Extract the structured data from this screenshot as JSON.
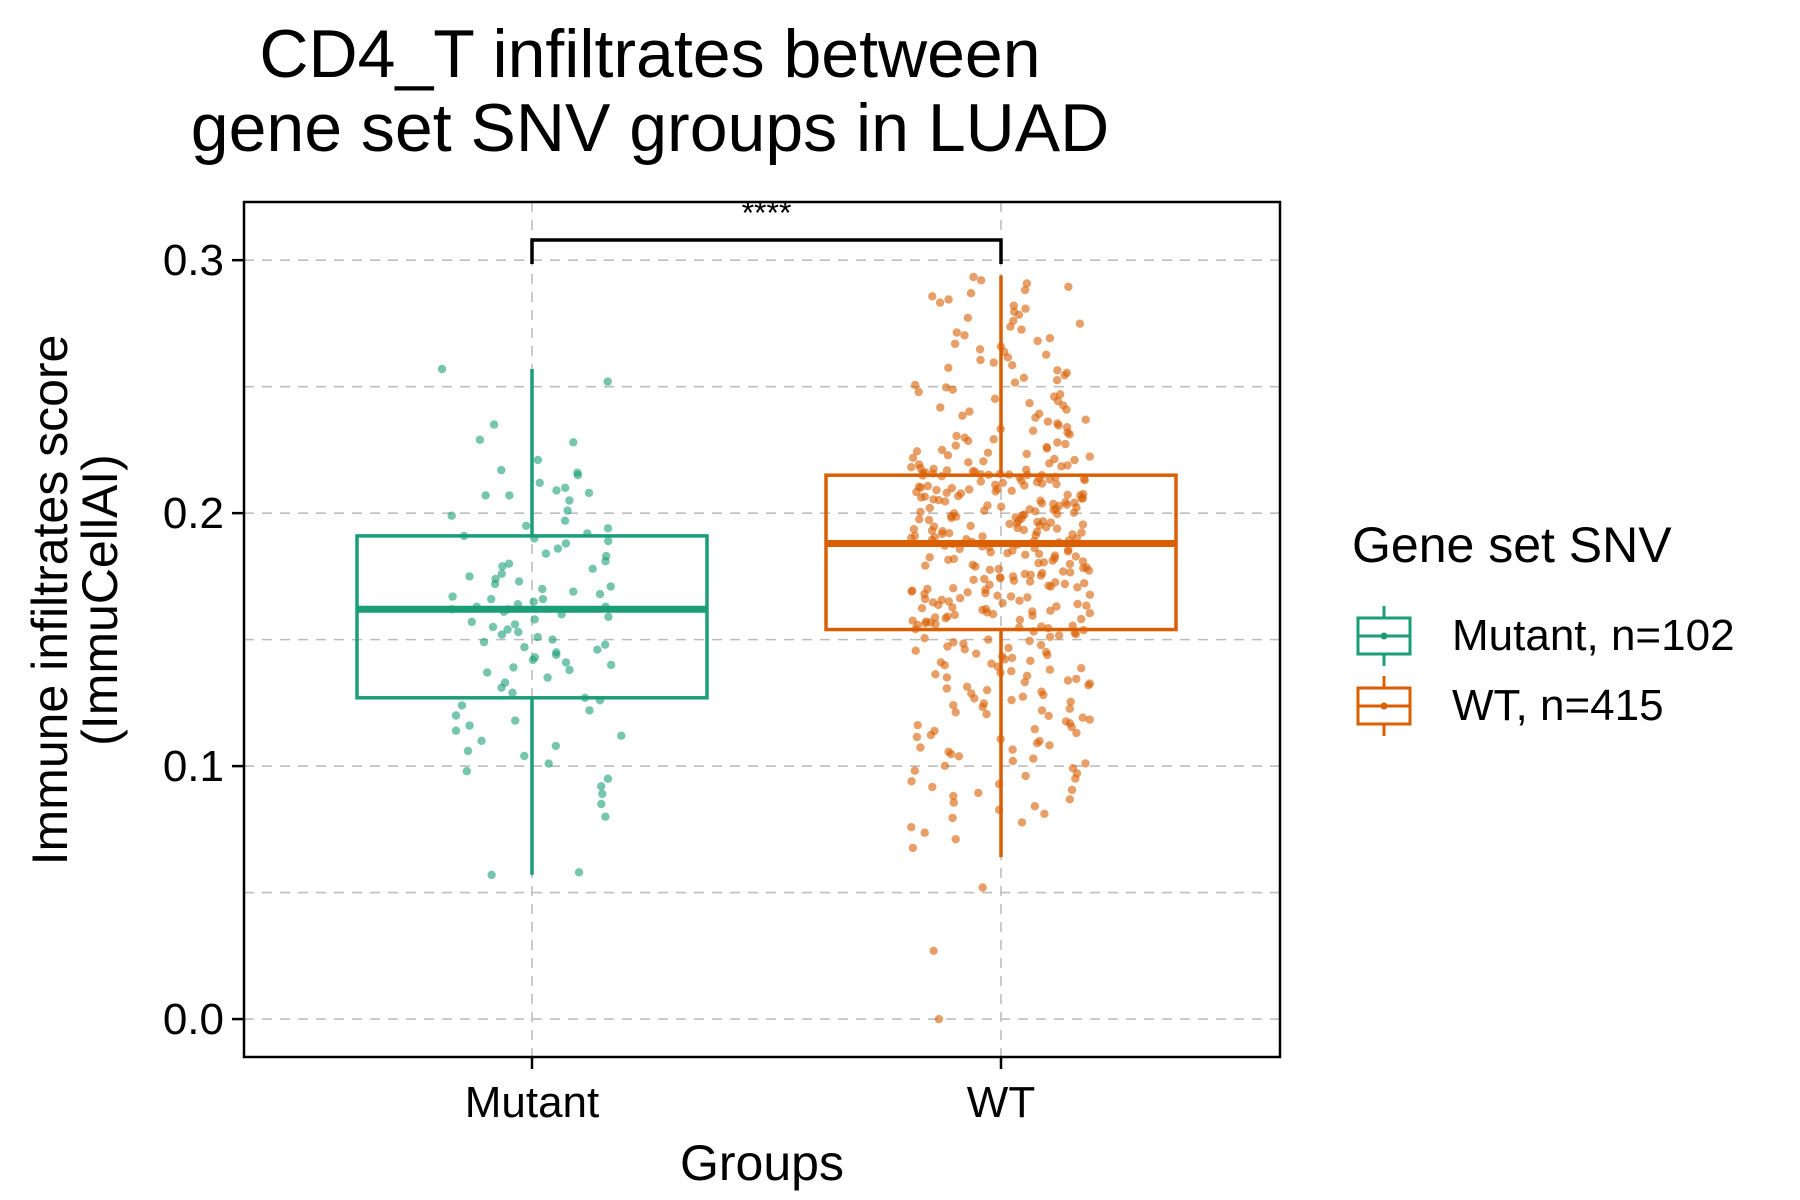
{
  "chart_data": {
    "type": "box",
    "title_lines": [
      "CD4_T infiltrates between",
      "gene set SNV groups in LUAD"
    ],
    "xlabel": "Groups",
    "ylabel_lines": [
      "Immune infiltrates score",
      "(ImmuCellAI)"
    ],
    "categories": [
      "Mutant",
      "WT"
    ],
    "ylim": [
      -0.015,
      0.323
    ],
    "yticks": [
      0.0,
      0.1,
      0.2,
      0.3
    ],
    "ytick_labels": [
      "0.0",
      "0.1",
      "0.2",
      "0.3"
    ],
    "grid": true,
    "significance": {
      "label": "****",
      "between": [
        "Mutant",
        "WT"
      ],
      "y": 0.308
    },
    "legend": {
      "title": "Gene set SNV",
      "position": "right"
    },
    "series": [
      {
        "name": "Mutant, n=102",
        "category": "Mutant",
        "color": "#1b9e77",
        "n": 102,
        "box": {
          "min": 0.057,
          "q1": 0.127,
          "median": 0.162,
          "q3": 0.191,
          "max": 0.257
        },
        "points": [
          0.257,
          0.252,
          0.235,
          0.229,
          0.228,
          0.221,
          0.217,
          0.216,
          0.215,
          0.212,
          0.21,
          0.209,
          0.208,
          0.207,
          0.207,
          0.205,
          0.201,
          0.199,
          0.197,
          0.195,
          0.194,
          0.192,
          0.191,
          0.19,
          0.189,
          0.188,
          0.186,
          0.184,
          0.183,
          0.181,
          0.18,
          0.179,
          0.178,
          0.176,
          0.175,
          0.174,
          0.173,
          0.172,
          0.171,
          0.17,
          0.169,
          0.168,
          0.167,
          0.166,
          0.166,
          0.165,
          0.164,
          0.163,
          0.163,
          0.162,
          0.162,
          0.161,
          0.16,
          0.159,
          0.158,
          0.157,
          0.156,
          0.155,
          0.154,
          0.153,
          0.152,
          0.151,
          0.15,
          0.149,
          0.148,
          0.147,
          0.146,
          0.145,
          0.144,
          0.143,
          0.142,
          0.141,
          0.14,
          0.139,
          0.138,
          0.137,
          0.135,
          0.133,
          0.131,
          0.129,
          0.127,
          0.126,
          0.124,
          0.122,
          0.12,
          0.118,
          0.116,
          0.114,
          0.112,
          0.11,
          0.108,
          0.106,
          0.104,
          0.101,
          0.098,
          0.095,
          0.092,
          0.089,
          0.085,
          0.08,
          0.058,
          0.057
        ]
      },
      {
        "name": "WT, n=415",
        "category": "WT",
        "color": "#d95f02",
        "n": 415,
        "box": {
          "min": 0.064,
          "q1": 0.154,
          "median": 0.188,
          "q3": 0.215,
          "max": 0.294
        },
        "outliers": [
          0.052,
          0.027,
          0.0
        ]
      }
    ]
  }
}
